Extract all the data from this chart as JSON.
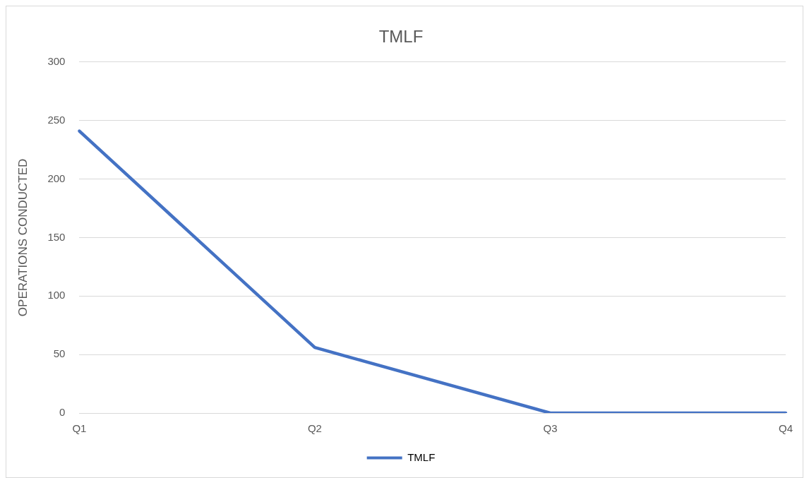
{
  "chart_data": {
    "type": "line",
    "title": "TMLF",
    "ylabel": "OPERATIONS CONDUCTED",
    "categories": [
      "Q1",
      "Q2",
      "Q3",
      "Q4"
    ],
    "series": [
      {
        "name": "TMLF",
        "color": "#4472c4",
        "values": [
          241,
          56,
          0,
          0
        ]
      }
    ],
    "ylim": [
      0,
      300
    ],
    "yticks": [
      0,
      50,
      100,
      150,
      200,
      250,
      300
    ],
    "grid": "y",
    "legend": "bottom",
    "marker": "none",
    "line_style": "solid"
  }
}
